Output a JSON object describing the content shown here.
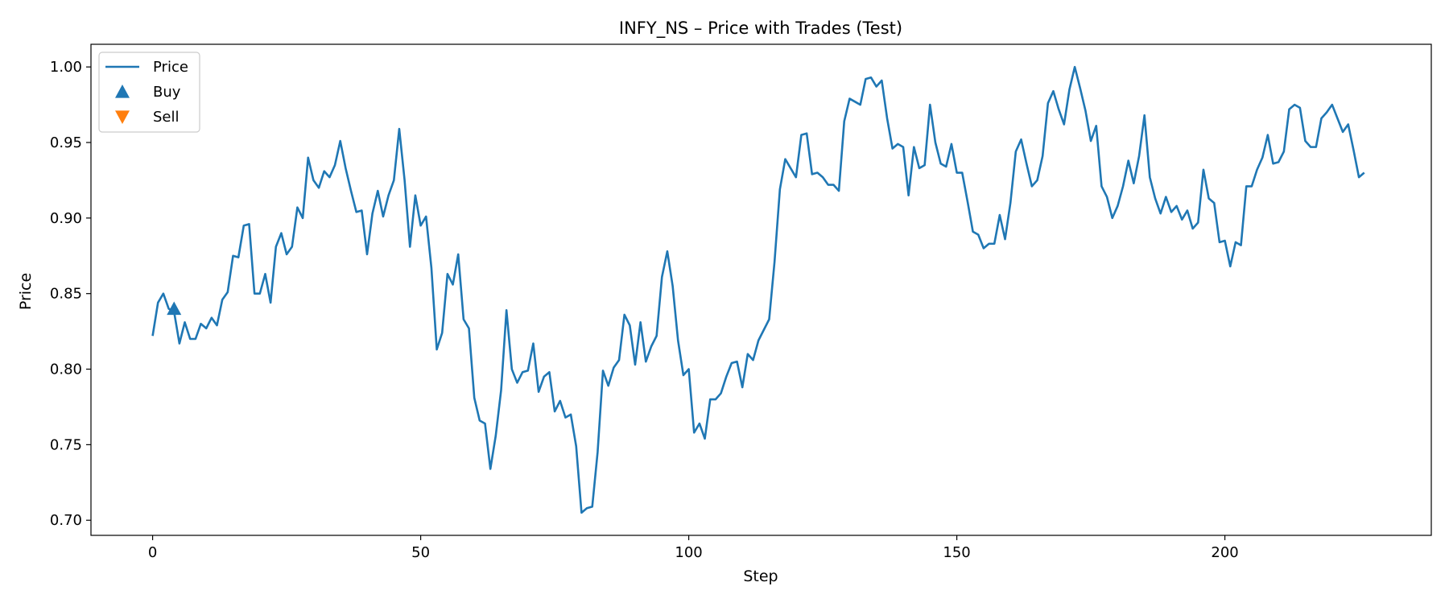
{
  "chart_data": {
    "type": "line",
    "title": "INFY_NS – Price with Trades (Test)",
    "xlabel": "Step",
    "ylabel": "Price",
    "xlim": [
      -11.5,
      238.5
    ],
    "ylim": [
      0.69,
      1.015
    ],
    "xticks": [
      0,
      50,
      100,
      150,
      200
    ],
    "yticks": [
      0.7,
      0.75,
      0.8,
      0.85,
      0.9,
      0.95,
      1.0
    ],
    "grid": false,
    "legend_position": "top-left",
    "colors": {
      "price": "#1f77b4",
      "buy": "#1f77b4",
      "sell": "#ff7f0e"
    },
    "series": [
      {
        "name": "Price",
        "x_start": 0,
        "x_step": 1,
        "values": [
          0.822,
          0.844,
          0.85,
          0.84,
          0.838,
          0.817,
          0.831,
          0.82,
          0.82,
          0.83,
          0.827,
          0.834,
          0.829,
          0.846,
          0.851,
          0.875,
          0.874,
          0.895,
          0.896,
          0.85,
          0.85,
          0.863,
          0.844,
          0.881,
          0.89,
          0.876,
          0.881,
          0.907,
          0.9,
          0.94,
          0.925,
          0.92,
          0.931,
          0.927,
          0.935,
          0.951,
          0.933,
          0.918,
          0.904,
          0.905,
          0.876,
          0.903,
          0.918,
          0.901,
          0.915,
          0.925,
          0.959,
          0.925,
          0.881,
          0.915,
          0.895,
          0.901,
          0.867,
          0.813,
          0.824,
          0.863,
          0.856,
          0.876,
          0.833,
          0.827,
          0.781,
          0.766,
          0.764,
          0.734,
          0.756,
          0.786,
          0.839,
          0.8,
          0.791,
          0.798,
          0.799,
          0.817,
          0.785,
          0.795,
          0.798,
          0.772,
          0.779,
          0.768,
          0.77,
          0.749,
          0.705,
          0.708,
          0.709,
          0.745,
          0.799,
          0.789,
          0.801,
          0.806,
          0.836,
          0.829,
          0.803,
          0.831,
          0.805,
          0.815,
          0.822,
          0.861,
          0.878,
          0.855,
          0.819,
          0.796,
          0.8,
          0.758,
          0.764,
          0.754,
          0.78,
          0.78,
          0.784,
          0.795,
          0.804,
          0.805,
          0.788,
          0.81,
          0.806,
          0.819,
          0.826,
          0.833,
          0.871,
          0.919,
          0.939,
          0.933,
          0.927,
          0.955,
          0.956,
          0.929,
          0.93,
          0.927,
          0.922,
          0.922,
          0.918,
          0.964,
          0.979,
          0.977,
          0.975,
          0.992,
          0.993,
          0.987,
          0.991,
          0.966,
          0.946,
          0.949,
          0.947,
          0.915,
          0.947,
          0.933,
          0.935,
          0.975,
          0.95,
          0.936,
          0.934,
          0.949,
          0.93,
          0.93,
          0.911,
          0.891,
          0.889,
          0.88,
          0.883,
          0.883,
          0.902,
          0.886,
          0.91,
          0.944,
          0.952,
          0.936,
          0.921,
          0.925,
          0.941,
          0.976,
          0.984,
          0.972,
          0.962,
          0.985,
          1.0,
          0.986,
          0.971,
          0.951,
          0.961,
          0.921,
          0.914,
          0.9,
          0.908,
          0.921,
          0.938,
          0.923,
          0.941,
          0.968,
          0.927,
          0.913,
          0.903,
          0.914,
          0.904,
          0.908,
          0.899,
          0.905,
          0.893,
          0.897,
          0.932,
          0.913,
          0.91,
          0.884,
          0.885,
          0.868,
          0.884,
          0.882,
          0.921,
          0.921,
          0.932,
          0.94,
          0.955,
          0.936,
          0.937,
          0.944,
          0.972,
          0.975,
          0.973,
          0.951,
          0.947,
          0.947,
          0.966,
          0.97,
          0.975,
          0.966,
          0.957,
          0.962,
          0.945,
          0.927,
          0.93
        ]
      }
    ],
    "buy_points": [
      {
        "x": 4,
        "y": 0.84
      }
    ],
    "sell_points": [],
    "legend": [
      {
        "label": "Price",
        "marker": "line"
      },
      {
        "label": "Buy",
        "marker": "triangle-up"
      },
      {
        "label": "Sell",
        "marker": "triangle-down"
      }
    ]
  }
}
